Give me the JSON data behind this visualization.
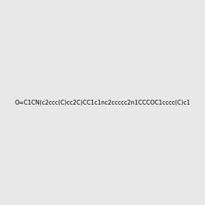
{
  "smiles": "O=C1CN(c2ccc(C)cc2C)CC1c1nc2ccccc2n1CCCOC1cccc(C)c1",
  "image_size": 300,
  "background_color": "#e8e8e8",
  "title": ""
}
